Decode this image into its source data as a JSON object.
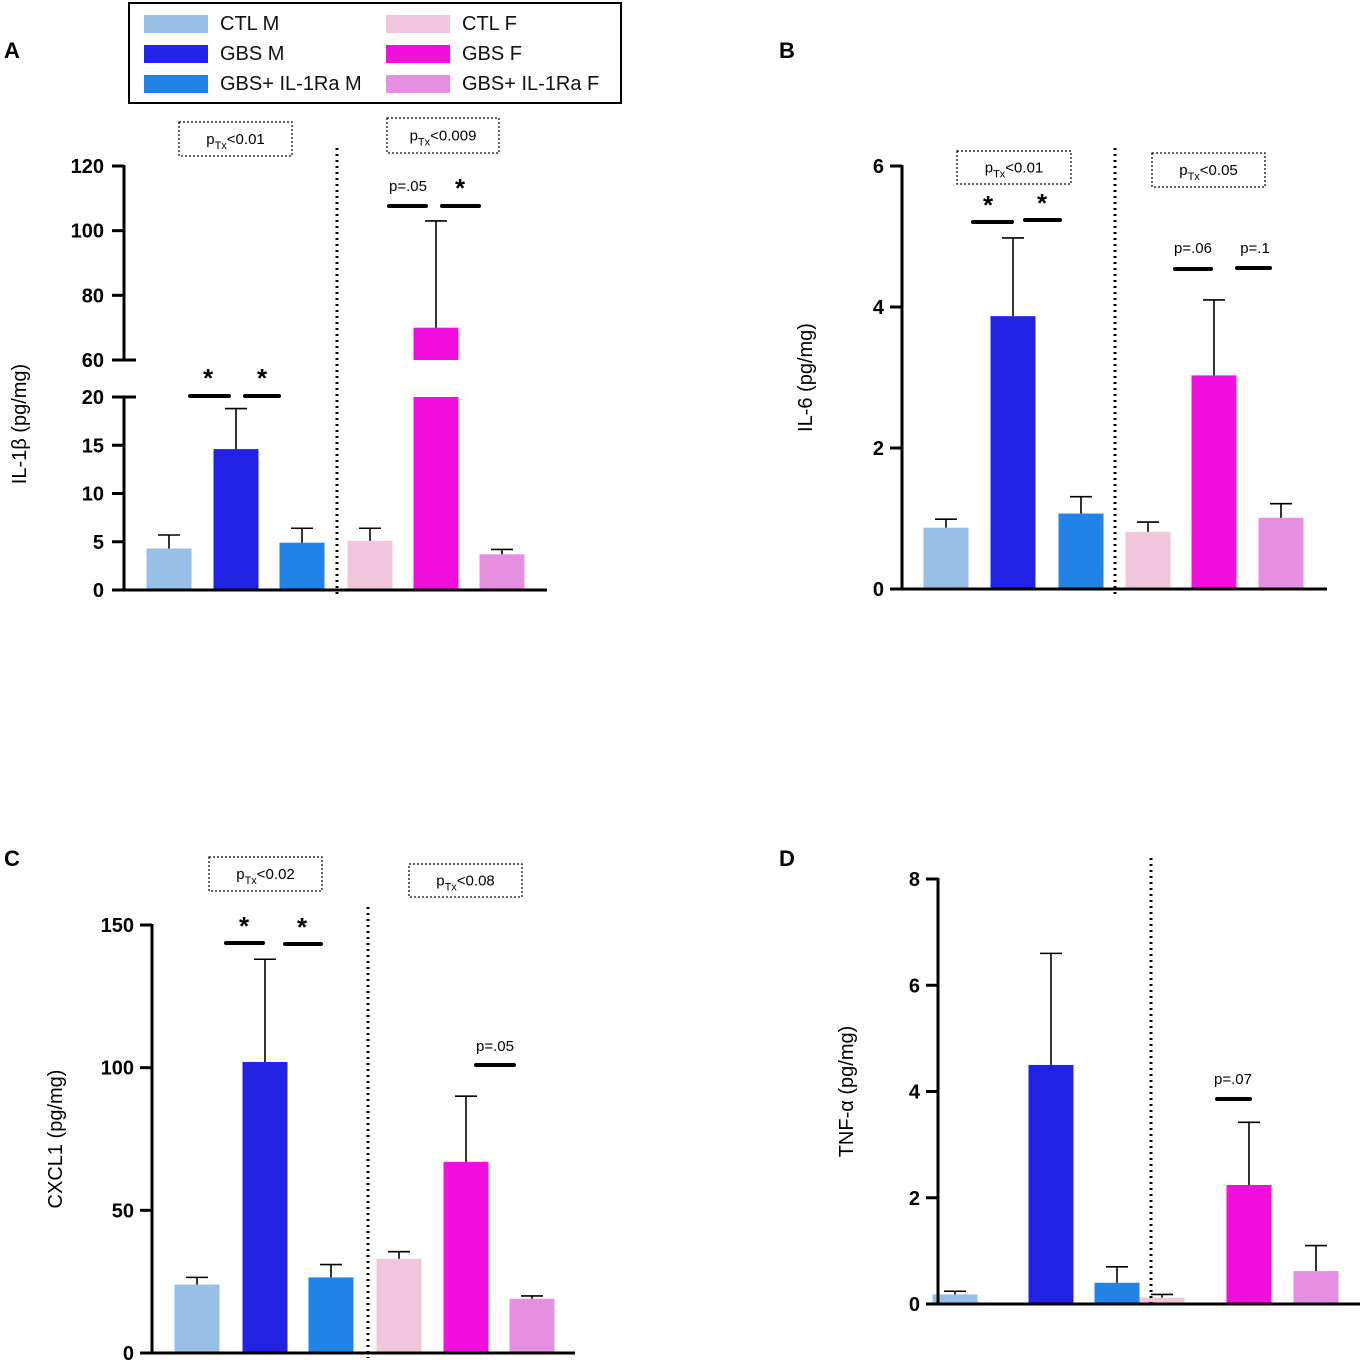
{
  "legend": {
    "items": [
      {
        "label": "CTL M",
        "color": "#98bfe6"
      },
      {
        "label": "GBS M",
        "color": "#2222e4"
      },
      {
        "label": "GBS+ IL-1Ra M",
        "color": "#2283e6"
      },
      {
        "label": "CTL F",
        "color": "#f2c6da"
      },
      {
        "label": "GBS F",
        "color": "#f20fdd"
      },
      {
        "label": "GBS+ IL-1Ra F",
        "color": "#e68fe0"
      }
    ]
  },
  "chart_data": [
    {
      "panel": "A",
      "type": "bar",
      "ylabel": "IL-1β (pg/mg)",
      "broken_axis": true,
      "lower_ticks": [
        0,
        5,
        10,
        15,
        20
      ],
      "upper_ticks": [
        60,
        80,
        100,
        120
      ],
      "categories": [
        "CTL M",
        "GBS M",
        "GBS+ IL-1Ra M",
        "CTL F",
        "GBS F",
        "GBS+ IL-1Ra F"
      ],
      "values": [
        4.3,
        14.6,
        4.9,
        5.1,
        70,
        3.7
      ],
      "errors": [
        1.4,
        4.2,
        1.5,
        1.3,
        33,
        0.5
      ],
      "tx_labels": [
        {
          "prefix": "p",
          "sub": "Tx",
          "text": "<0.01"
        },
        {
          "prefix": "p",
          "sub": "Tx",
          "text": "<0.009"
        }
      ],
      "annotations": [
        "*",
        "*",
        "p=.05",
        "*"
      ]
    },
    {
      "panel": "B",
      "type": "bar",
      "ylabel": "IL-6 (pg/mg)",
      "ylim": [
        0,
        6
      ],
      "ticks": [
        0,
        2,
        4,
        6
      ],
      "categories": [
        "CTL M",
        "GBS M",
        "GBS+ IL-1Ra M",
        "CTL F",
        "GBS F",
        "GBS+ IL-1Ra F"
      ],
      "values": [
        0.87,
        3.87,
        1.07,
        0.81,
        3.03,
        1.01
      ],
      "errors": [
        0.12,
        1.11,
        0.24,
        0.14,
        1.07,
        0.2
      ],
      "tx_labels": [
        {
          "prefix": "p",
          "sub": "Tx",
          "text": "<0.01"
        },
        {
          "prefix": "p",
          "sub": "Tx",
          "text": "<0.05"
        }
      ],
      "annotations": [
        "*",
        "*",
        "p=.06",
        "p=.1"
      ]
    },
    {
      "panel": "C",
      "type": "bar",
      "ylabel": "CXCL1 (pg/mg)",
      "ylim": [
        0,
        150
      ],
      "ticks": [
        0,
        50,
        100,
        150
      ],
      "categories": [
        "CTL M",
        "GBS M",
        "GBS+ IL-1Ra M",
        "CTL F",
        "GBS F",
        "GBS+ IL-1Ra F"
      ],
      "values": [
        24,
        102,
        26.5,
        33,
        67,
        19
      ],
      "errors": [
        2.5,
        36,
        4.5,
        2.5,
        23,
        1
      ],
      "tx_labels": [
        {
          "prefix": "p",
          "sub": "Tx",
          "text": "<0.02"
        },
        {
          "prefix": "p",
          "sub": "Tx",
          "text": "<0.08"
        }
      ],
      "annotations": [
        "*",
        "*",
        "p=.05"
      ]
    },
    {
      "panel": "D",
      "type": "bar",
      "ylabel": "TNF-α (pg/mg)",
      "ylim": [
        0,
        8
      ],
      "ticks": [
        0,
        2,
        4,
        6,
        8
      ],
      "categories": [
        "CTL M",
        "GBS M",
        "GBS+ IL-1Ra M",
        "CTL F",
        "GBS F",
        "GBS+ IL-1Ra F"
      ],
      "values": [
        0.18,
        4.5,
        0.4,
        0.12,
        2.24,
        0.62
      ],
      "errors": [
        0.06,
        2.1,
        0.3,
        0.06,
        1.18,
        0.48
      ],
      "tx_labels": [],
      "annotations": [
        "p=.07"
      ]
    }
  ]
}
